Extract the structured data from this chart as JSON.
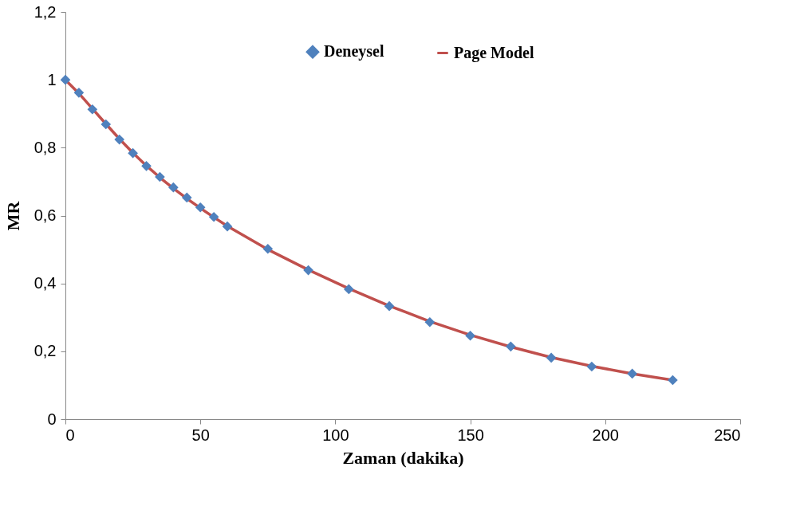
{
  "chart_data": {
    "type": "scatter",
    "xlabel": "Zaman (dakika)",
    "ylabel": "MR",
    "x": [
      0,
      5,
      10,
      15,
      20,
      25,
      30,
      35,
      40,
      45,
      50,
      55,
      60,
      75,
      90,
      105,
      120,
      135,
      150,
      165,
      180,
      195,
      210,
      225
    ],
    "series": [
      {
        "name": "Deneysel",
        "color": "#4f81bd",
        "marker": "diamond",
        "values": [
          1.0,
          0.962,
          0.913,
          0.869,
          0.824,
          0.784,
          0.746,
          0.714,
          0.683,
          0.653,
          0.624,
          0.596,
          0.568,
          0.502,
          0.439,
          0.383,
          0.333,
          0.286,
          0.246,
          0.214,
          0.181,
          0.155,
          0.134,
          0.115
        ]
      },
      {
        "name": "Page Model",
        "type": "line",
        "color": "#c0504d",
        "line_style": "solid",
        "values": [
          1.0,
          0.96,
          0.915,
          0.87,
          0.826,
          0.785,
          0.747,
          0.712,
          0.68,
          0.65,
          0.622,
          0.595,
          0.569,
          0.5,
          0.44,
          0.385,
          0.334,
          0.288,
          0.248,
          0.213,
          0.182,
          0.156,
          0.134,
          0.115
        ]
      }
    ],
    "xlim": [
      0,
      250
    ],
    "xticks": [
      0,
      50,
      100,
      150,
      200,
      250
    ],
    "ylim": [
      0,
      1.2
    ],
    "yticks": [
      0,
      {
        "value": 0.2,
        "label": "0,2"
      },
      {
        "value": 0.4,
        "label": "0,4"
      },
      {
        "value": 0.6,
        "label": "0,6"
      },
      {
        "value": 0.8,
        "label": "0,8"
      },
      1,
      {
        "value": 1.2,
        "label": "1,2"
      }
    ],
    "grid": false,
    "legend": "top right"
  }
}
